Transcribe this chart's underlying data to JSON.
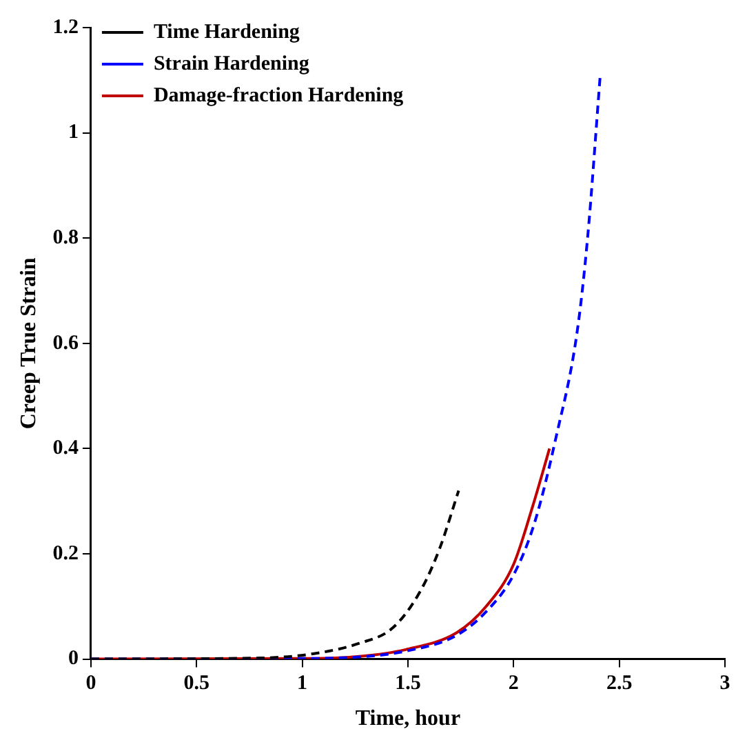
{
  "chart_data": {
    "type": "line",
    "xlabel": "Time, hour",
    "ylabel": "Creep True Strain",
    "xlim": [
      0,
      3
    ],
    "xticks": [
      0,
      0.5,
      1,
      1.5,
      2,
      2.5,
      3
    ],
    "ylim": [
      0,
      1.2
    ],
    "yticks": [
      0,
      0.2,
      0.4,
      0.6,
      0.8,
      1,
      1.2
    ],
    "grid": false,
    "legend": "top left",
    "marker": "none",
    "series": [
      {
        "name": "Time Hardening",
        "color": "#000000",
        "line_style": "dashed",
        "x": [
          0,
          0.8,
          1.05,
          1.27,
          1.43,
          1.56,
          1.65,
          1.74
        ],
        "values": [
          0,
          0.002,
          0.01,
          0.03,
          0.06,
          0.13,
          0.21,
          0.32
        ]
      },
      {
        "name": "Strain Hardening",
        "color": "#0000ff",
        "line_style": "dashed",
        "x": [
          0,
          1,
          1.27,
          1.49,
          1.73,
          1.87,
          2.0,
          2.1,
          2.2,
          2.3,
          2.35,
          2.41
        ],
        "values": [
          0,
          0.001,
          0.004,
          0.015,
          0.045,
          0.09,
          0.16,
          0.26,
          0.42,
          0.62,
          0.8,
          1.11
        ]
      },
      {
        "name": "Damage-fraction Hardening",
        "color": "#c00000",
        "line_style": "solid",
        "x": [
          0,
          1,
          1.27,
          1.49,
          1.73,
          1.87,
          2.0,
          2.09,
          2.17
        ],
        "values": [
          0,
          0.001,
          0.005,
          0.018,
          0.05,
          0.1,
          0.18,
          0.29,
          0.4
        ]
      }
    ]
  }
}
